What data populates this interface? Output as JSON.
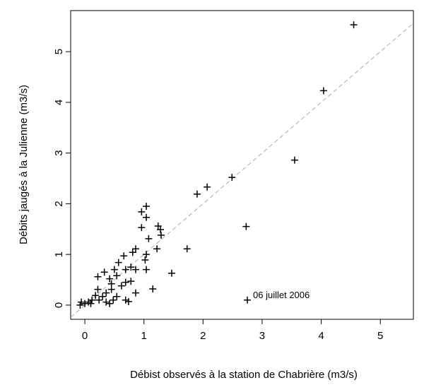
{
  "chart_data": {
    "type": "scatter",
    "x_label": "Débist observés à la station de Chabrière (m3/s)",
    "y_label": "Débits jaugés à la Julienne (m3/s)",
    "xlim": [
      -0.24,
      5.56
    ],
    "ylim": [
      -0.28,
      5.81
    ],
    "xticks": [
      0,
      1,
      2,
      3,
      4,
      5
    ],
    "yticks": [
      0,
      1,
      2,
      3,
      4,
      5
    ],
    "reference_line": "y=x",
    "color": "#000000",
    "x": [
      4.55,
      4.04,
      3.55,
      2.73,
      2.49,
      2.07,
      1.9,
      1.73,
      1.47,
      1.15,
      2.75,
      1.04,
      0.96,
      1.04,
      1.24,
      1.28,
      0.96,
      1.08,
      1.29,
      1.22,
      1.04,
      1.02,
      0.86,
      0.81,
      1.04,
      0.86,
      0.78,
      0.69,
      0.66,
      0.57,
      0.5,
      0.54,
      0.42,
      0.33,
      0.22,
      0.78,
      0.86,
      0.69,
      0.62,
      0.45,
      0.45,
      0.36,
      0.3,
      0.22,
      0.18,
      0.12,
      0.06,
      0.0,
      -0.06,
      -0.08,
      0.1,
      0.24,
      0.36,
      0.48,
      0.69,
      0.74,
      0.54,
      0.42
    ],
    "y": [
      5.53,
      4.23,
      2.86,
      1.55,
      2.52,
      2.33,
      2.19,
      1.11,
      0.63,
      0.32,
      0.1,
      1.95,
      1.84,
      1.73,
      1.56,
      1.49,
      1.53,
      1.31,
      1.38,
      1.11,
      1.0,
      0.89,
      1.11,
      1.04,
      0.7,
      0.7,
      0.75,
      0.7,
      0.97,
      0.84,
      0.7,
      0.58,
      0.52,
      0.65,
      0.56,
      0.47,
      0.24,
      0.45,
      0.38,
      0.42,
      0.31,
      0.24,
      0.17,
      0.31,
      0.19,
      0.1,
      0.06,
      0.03,
      0.06,
      0.0,
      0.03,
      0.1,
      0.06,
      0.1,
      0.1,
      0.07,
      0.17,
      0.03
    ],
    "annotations": [
      {
        "text": "06 juillet 2006",
        "x": 2.75,
        "y": 0.1
      }
    ]
  }
}
